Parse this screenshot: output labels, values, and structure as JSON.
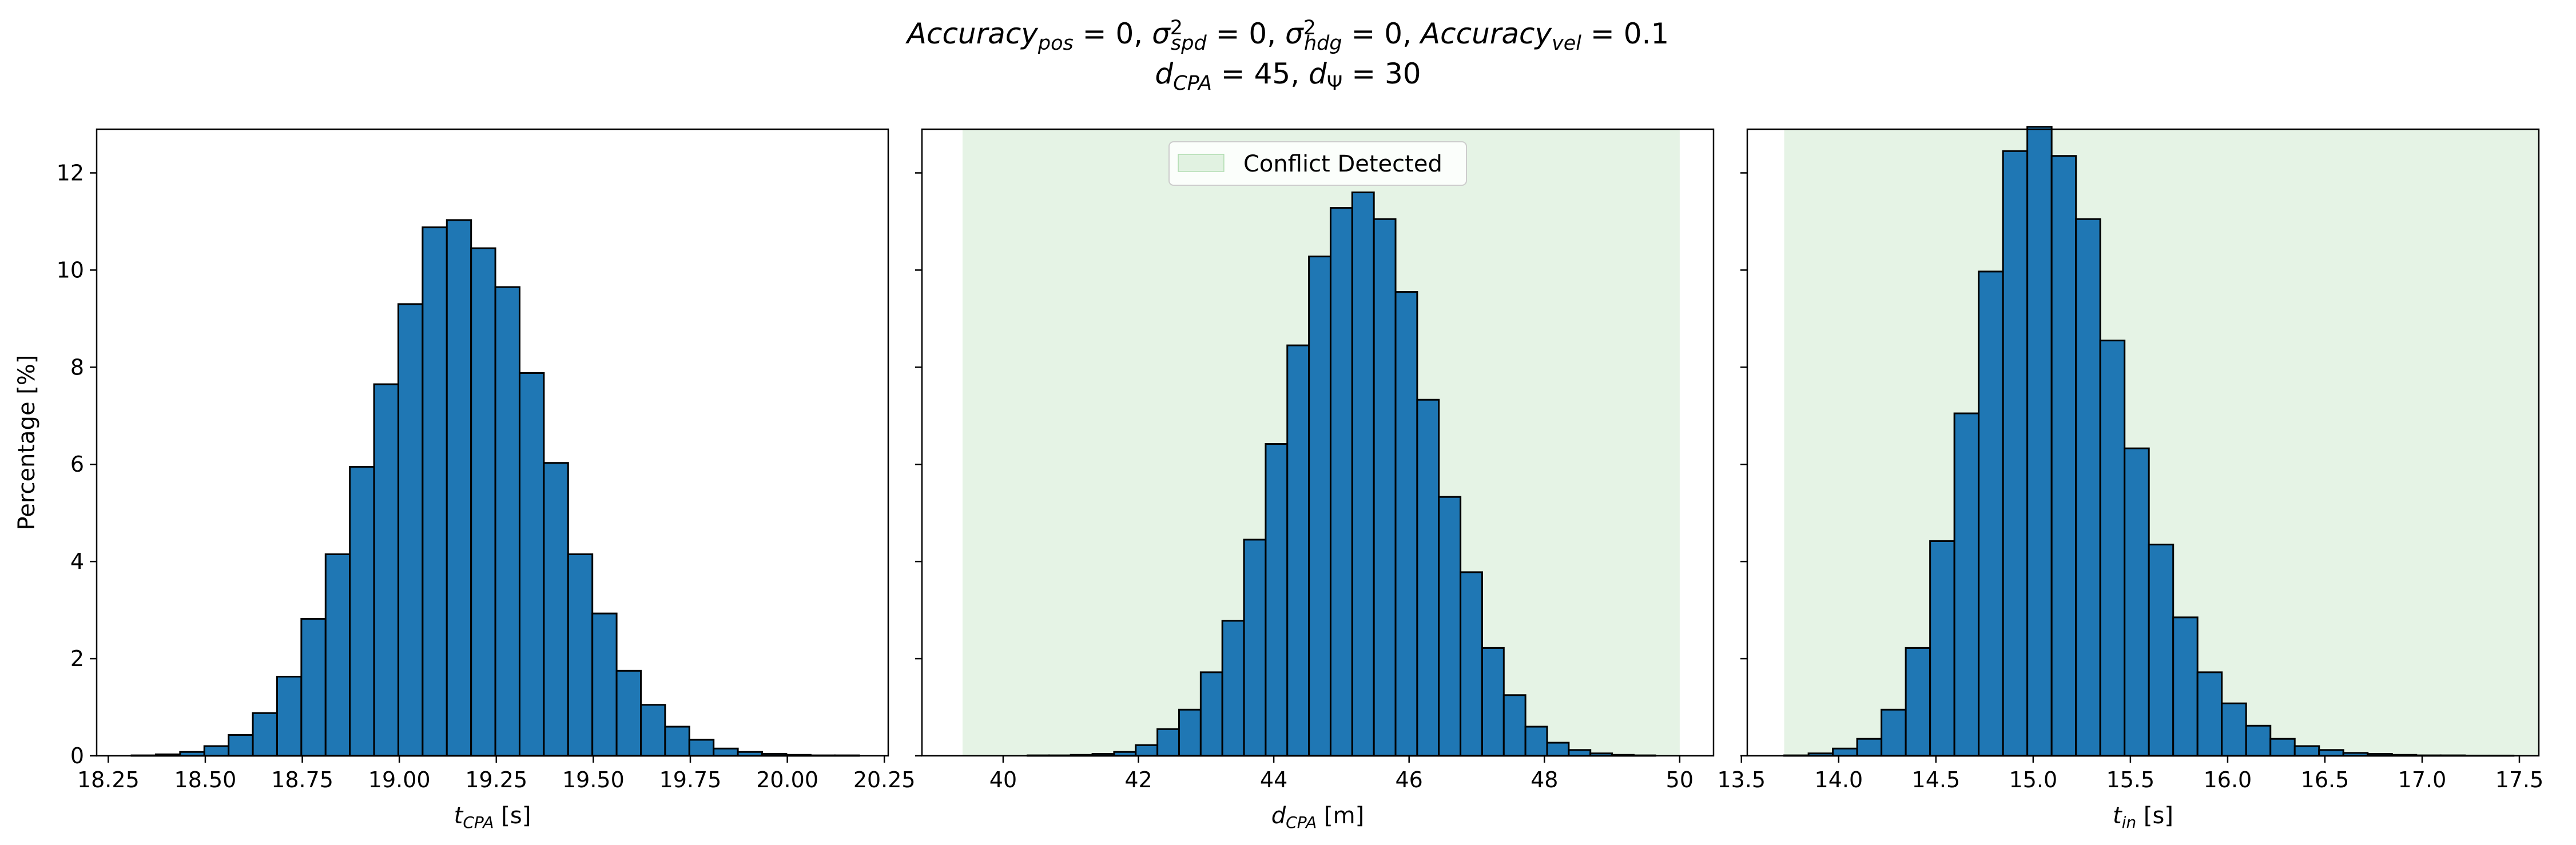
{
  "figure": {
    "title_line1_parts": [
      {
        "t": "Accuracy",
        "style": "italic"
      },
      {
        "t": "pos",
        "style": "italic-sub"
      },
      {
        "t": " = 0, ",
        "style": "normal"
      },
      {
        "t": "σ",
        "style": "italic"
      },
      {
        "t": "2",
        "style": "sup"
      },
      {
        "t": "spd",
        "style": "italic-sub-under"
      },
      {
        "t": " = 0, ",
        "style": "normal"
      },
      {
        "t": "σ",
        "style": "italic"
      },
      {
        "t": "2",
        "style": "sup"
      },
      {
        "t": "hdg",
        "style": "italic-sub-under"
      },
      {
        "t": " = 0, ",
        "style": "normal"
      },
      {
        "t": "Accuracy",
        "style": "italic"
      },
      {
        "t": "vel",
        "style": "italic-sub"
      },
      {
        "t": " = 0.1",
        "style": "normal"
      }
    ],
    "title_line2_parts": [
      {
        "t": "d",
        "style": "italic"
      },
      {
        "t": "CPA",
        "style": "italic-sub"
      },
      {
        "t": " = 45, ",
        "style": "normal"
      },
      {
        "t": "d",
        "style": "italic"
      },
      {
        "t": "Ψ",
        "style": "sub"
      },
      {
        "t": " = 30",
        "style": "normal"
      }
    ],
    "bar_color": "#1f77b4",
    "bar_edge_color": "#000000",
    "shade_color": "#2ca02c",
    "shade_opacity": 0.12
  },
  "chart_data": [
    {
      "type": "bar",
      "ylabel": "Percentage [%]",
      "xlabel_parts": [
        {
          "t": "t",
          "style": "italic"
        },
        {
          "t": "CPA",
          "style": "italic-sub"
        },
        {
          "t": " [s]",
          "style": "normal"
        }
      ],
      "xlim": [
        18.22,
        20.26
      ],
      "ylim": [
        0,
        12.9
      ],
      "xticks": [
        18.25,
        18.5,
        18.75,
        19.0,
        19.25,
        19.5,
        19.75,
        20.0,
        20.25
      ],
      "xtick_labels": [
        "18.25",
        "18.50",
        "18.75",
        "19.00",
        "19.25",
        "19.50",
        "19.75",
        "20.00",
        "20.25"
      ],
      "yticks": [
        0,
        2,
        4,
        6,
        8,
        10,
        12
      ],
      "ytick_labels": [
        "0",
        "2",
        "4",
        "6",
        "8",
        "10",
        "12"
      ],
      "bin_start": 18.31,
      "bin_width": 0.0625,
      "values": [
        0.01,
        0.03,
        0.08,
        0.2,
        0.43,
        0.88,
        1.63,
        2.82,
        4.15,
        5.95,
        7.65,
        9.3,
        10.88,
        11.03,
        10.45,
        9.65,
        7.88,
        6.03,
        4.15,
        2.93,
        1.75,
        1.05,
        0.6,
        0.33,
        0.15,
        0.08,
        0.04,
        0.02,
        0.01,
        0.01
      ],
      "shade": null,
      "legend": null
    },
    {
      "type": "bar",
      "ylabel": "",
      "xlabel_parts": [
        {
          "t": "d",
          "style": "italic"
        },
        {
          "t": "CPA",
          "style": "italic-sub"
        },
        {
          "t": " [m]",
          "style": "normal"
        }
      ],
      "xlim": [
        38.8,
        50.5
      ],
      "ylim": [
        0,
        12.9
      ],
      "xticks": [
        40,
        42,
        44,
        46,
        48,
        50
      ],
      "xtick_labels": [
        "40",
        "42",
        "44",
        "46",
        "48",
        "50"
      ],
      "yticks": [
        0,
        2,
        4,
        6,
        8,
        10,
        12
      ],
      "ytick_labels": [
        "",
        "",
        "",
        "",
        "",
        "",
        ""
      ],
      "bin_start": 39.4,
      "bin_width": 0.32,
      "values": [
        0.0,
        0.0,
        0.0,
        0.01,
        0.01,
        0.02,
        0.04,
        0.08,
        0.22,
        0.55,
        0.95,
        1.72,
        2.78,
        4.45,
        6.42,
        8.45,
        10.28,
        11.28,
        11.6,
        11.05,
        9.55,
        7.33,
        5.33,
        3.78,
        2.22,
        1.25,
        0.6,
        0.27,
        0.12,
        0.05,
        0.02,
        0.01
      ],
      "shade": [
        39.4,
        50.0
      ],
      "legend": {
        "label": "Conflict Detected",
        "placement": "upper center"
      }
    },
    {
      "type": "bar",
      "ylabel": "",
      "xlabel_parts": [
        {
          "t": "t",
          "style": "italic"
        },
        {
          "t": "in",
          "style": "italic-sub"
        },
        {
          "t": " [s]",
          "style": "normal"
        }
      ],
      "xlim": [
        13.53,
        17.6
      ],
      "ylim": [
        0,
        12.9
      ],
      "xticks": [
        13.5,
        14.0,
        14.5,
        15.0,
        15.5,
        16.0,
        16.5,
        17.0,
        17.5
      ],
      "xtick_labels": [
        "13.5",
        "14.0",
        "14.5",
        "15.0",
        "15.5",
        "16.0",
        "16.5",
        "17.0",
        "17.5"
      ],
      "yticks": [
        0,
        2,
        4,
        6,
        8,
        10,
        12
      ],
      "ytick_labels": [
        "",
        "",
        "",
        "",
        "",
        "",
        ""
      ],
      "bin_start": 13.72,
      "bin_width": 0.125,
      "values": [
        0.01,
        0.05,
        0.15,
        0.35,
        0.95,
        2.22,
        4.42,
        7.05,
        9.97,
        12.45,
        12.95,
        12.35,
        11.05,
        8.55,
        6.33,
        4.35,
        2.85,
        1.72,
        1.08,
        0.62,
        0.35,
        0.2,
        0.12,
        0.06,
        0.04,
        0.02,
        0.01,
        0.01,
        0.005,
        0.005
      ],
      "shade": [
        13.72,
        17.6
      ],
      "legend": null
    }
  ]
}
